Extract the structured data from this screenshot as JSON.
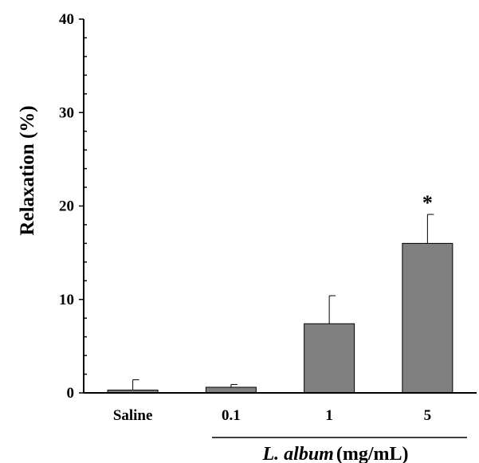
{
  "chart_data": {
    "type": "bar",
    "categories": [
      "Saline",
      "0.1",
      "1",
      "5"
    ],
    "values": [
      0.3,
      0.6,
      7.4,
      16.0
    ],
    "errors": [
      1.1,
      0.3,
      3.0,
      3.1
    ],
    "annotations": [
      "",
      "",
      "",
      "*"
    ],
    "ylabel": "Relaxation (%)",
    "xlabel_italic": "L. album",
    "xlabel_unit": "(mg/mL)",
    "ylim": [
      0,
      40
    ],
    "yticks": [
      0,
      10,
      20,
      30,
      40
    ],
    "grid": false,
    "bar_color": "#808080"
  }
}
